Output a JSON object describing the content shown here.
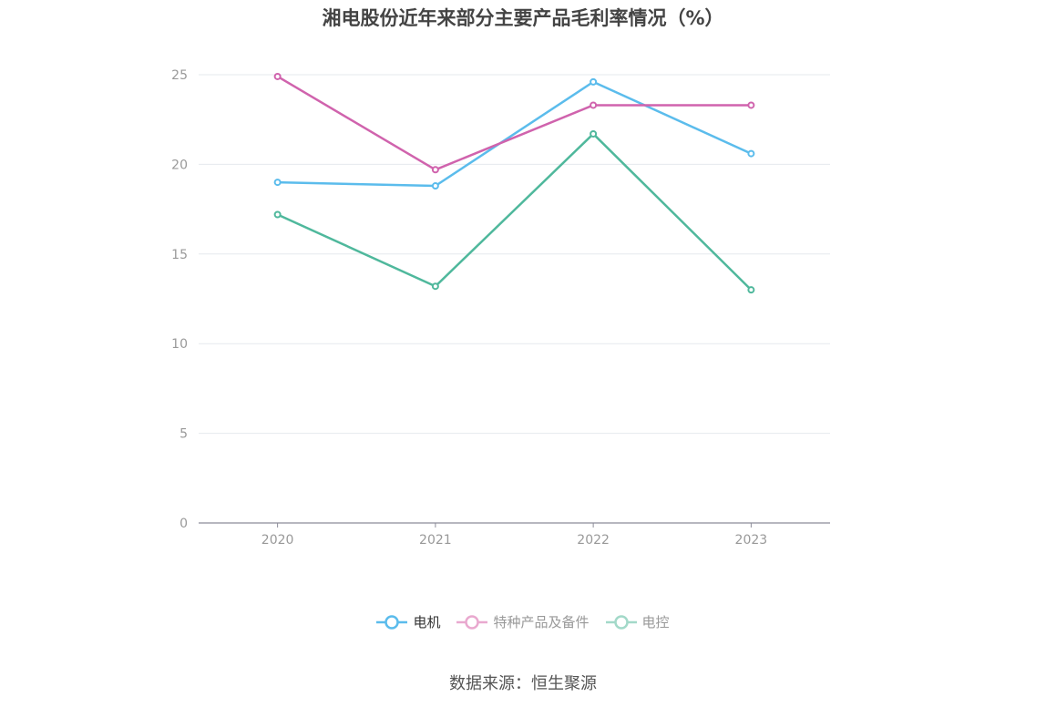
{
  "title": "湘电股份近年来部分主要产品毛利率情况（%）",
  "source": "数据来源：恒生聚源",
  "chart_data": {
    "type": "line",
    "title": "湘电股份近年来部分主要产品毛利率情况（%）",
    "xlabel": "",
    "ylabel": "",
    "categories": [
      "2020",
      "2021",
      "2022",
      "2023"
    ],
    "ylim": [
      0,
      25
    ],
    "yticks": [
      0,
      5,
      10,
      15,
      20,
      25
    ],
    "grid": true,
    "legend_position": "bottom",
    "series": [
      {
        "name": "电机",
        "color": "#5bbcec",
        "values": [
          19.0,
          18.8,
          24.6,
          20.6
        ]
      },
      {
        "name": "特种产品及备件",
        "color": "#d063ad",
        "values": [
          24.9,
          19.7,
          23.3,
          23.3
        ]
      },
      {
        "name": "电控",
        "color": "#4fb89c",
        "values": [
          17.2,
          13.2,
          21.7,
          13.0
        ]
      }
    ]
  },
  "legend": [
    {
      "label": "电机",
      "color": "#5bbcec",
      "text_color": "#333333"
    },
    {
      "label": "特种产品及备件",
      "color": "#e9a9cf",
      "text_color": "#999999"
    },
    {
      "label": "电控",
      "color": "#a3d9c9",
      "text_color": "#999999"
    }
  ]
}
